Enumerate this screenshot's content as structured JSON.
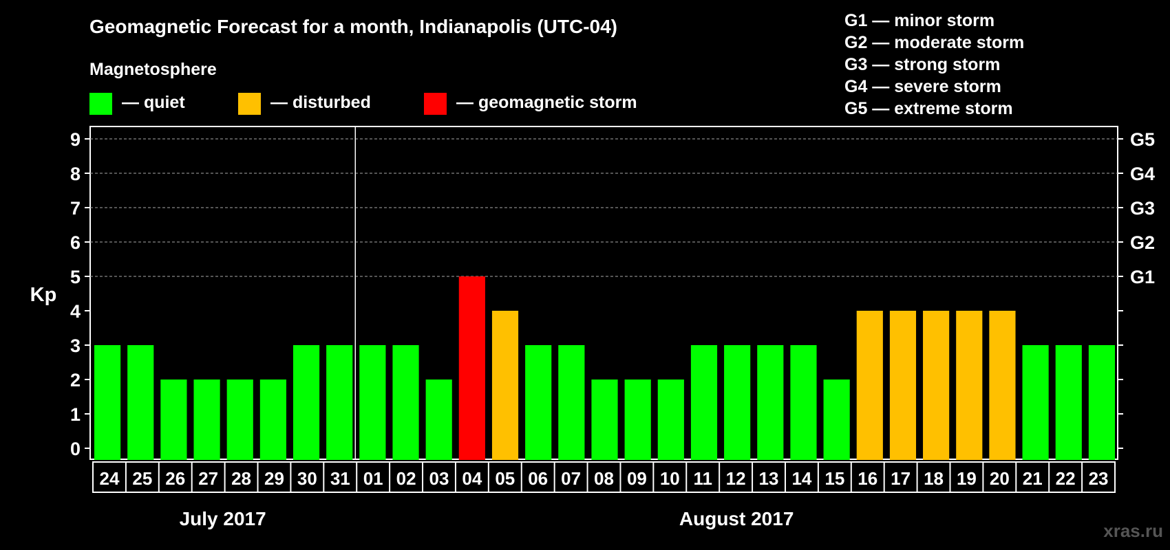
{
  "chart_data": {
    "type": "bar",
    "title": "Geomagnetic Forecast for a month, Indianapolis (UTC-04)",
    "legend_title": "Magnetosphere",
    "legend": [
      {
        "key": "quiet",
        "label": "— quiet",
        "color": "#00ff00"
      },
      {
        "key": "disturbed",
        "label": "— disturbed",
        "color": "#ffc000"
      },
      {
        "key": "storm",
        "label": "— geomagnetic storm",
        "color": "#ff0000"
      }
    ],
    "storm_scale": [
      "G1 — minor storm",
      "G2 — moderate storm",
      "G3 — strong storm",
      "G4 — severe storm",
      "G5 — extreme storm"
    ],
    "ylabel": "Kp",
    "ylim": [
      0,
      9
    ],
    "yticks": [
      0,
      1,
      2,
      3,
      4,
      5,
      6,
      7,
      8,
      9
    ],
    "right_axis_labels": [
      {
        "kp": 5,
        "label": "G1"
      },
      {
        "kp": 6,
        "label": "G2"
      },
      {
        "kp": 7,
        "label": "G3"
      },
      {
        "kp": 8,
        "label": "G4"
      },
      {
        "kp": 9,
        "label": "G5"
      }
    ],
    "grid": "dashed at Kp 5-9",
    "categories": [
      "24",
      "25",
      "26",
      "27",
      "28",
      "29",
      "30",
      "31",
      "01",
      "02",
      "03",
      "04",
      "05",
      "06",
      "07",
      "08",
      "09",
      "10",
      "11",
      "12",
      "13",
      "14",
      "15",
      "16",
      "17",
      "18",
      "19",
      "20",
      "21",
      "22",
      "23"
    ],
    "values": [
      3,
      3,
      2,
      2,
      2,
      2,
      3,
      3,
      3,
      3,
      2,
      5,
      4,
      3,
      3,
      2,
      2,
      2,
      3,
      3,
      3,
      3,
      2,
      4,
      4,
      4,
      4,
      4,
      3,
      3,
      3
    ],
    "months": [
      {
        "label": "July 2017",
        "days": 8
      },
      {
        "label": "August 2017",
        "days": 23
      }
    ]
  },
  "watermark": "xras.ru"
}
